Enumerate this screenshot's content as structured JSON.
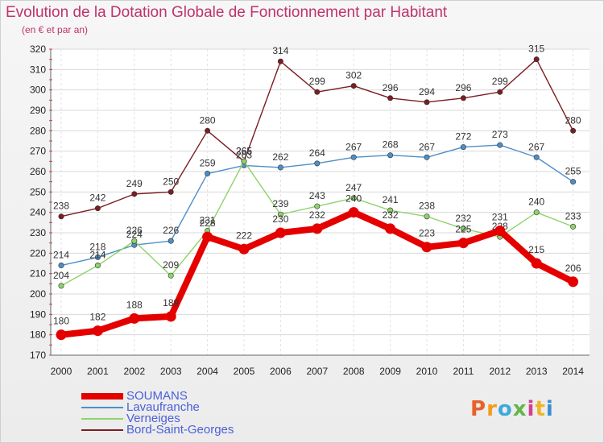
{
  "title": "Evolution de la Dotation Globale de Fonctionnement par Habitant",
  "subtitle": "(en € et par an)",
  "logo": {
    "text": "Proxiti",
    "colors": [
      "#e8622b",
      "#f39c1e",
      "#3fa8dc",
      "#63b64b",
      "#d33f8c",
      "#f0b429",
      "#3a8fd0"
    ]
  },
  "chart_data": {
    "type": "line",
    "x": [
      "2000",
      "2001",
      "2002",
      "2003",
      "2004",
      "2005",
      "2006",
      "2007",
      "2008",
      "2009",
      "2010",
      "2011",
      "2012",
      "2013",
      "2014"
    ],
    "ylim": [
      170,
      320
    ],
    "yticks": [
      170,
      180,
      190,
      200,
      210,
      220,
      230,
      240,
      250,
      260,
      270,
      280,
      290,
      300,
      310,
      320
    ],
    "grid": true,
    "legend": "bottom-left",
    "series": [
      {
        "name": "Bord-Saint-Georges",
        "color": "#7b1d22",
        "values": [
          238,
          242,
          249,
          250,
          280,
          265,
          314,
          299,
          302,
          296,
          294,
          296,
          299,
          315,
          280
        ]
      },
      {
        "name": "Lavaufranche",
        "color": "#4d8fc9",
        "values": [
          214,
          218,
          224,
          226,
          259,
          263,
          262,
          264,
          267,
          268,
          267,
          272,
          273,
          267,
          255
        ]
      },
      {
        "name": "Verneiges",
        "color": "#8ed36a",
        "values": [
          204,
          214,
          226,
          209,
          231,
          265,
          239,
          243,
          247,
          241,
          238,
          232,
          228,
          240,
          233
        ]
      },
      {
        "name": "SOUMANS",
        "color": "#e50000",
        "values": [
          180,
          182,
          188,
          189,
          228,
          222,
          230,
          232,
          240,
          232,
          223,
          225,
          231,
          215,
          206
        ]
      }
    ],
    "legend_order": [
      "SOUMANS",
      "Lavaufranche",
      "Verneiges",
      "Bord-Saint-Georges"
    ]
  }
}
